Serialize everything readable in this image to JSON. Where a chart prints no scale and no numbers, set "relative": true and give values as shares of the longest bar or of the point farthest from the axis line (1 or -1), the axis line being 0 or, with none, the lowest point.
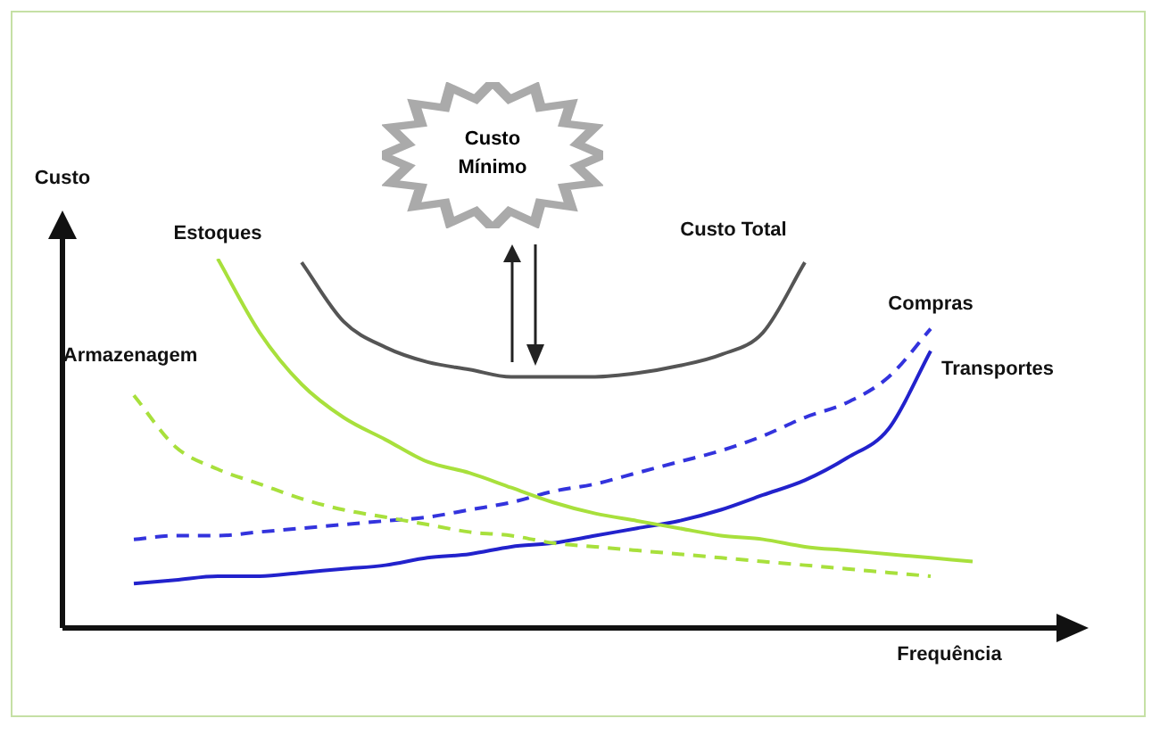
{
  "chart_data": {
    "type": "line",
    "relative": true,
    "xlabel": "Frequência",
    "ylabel": "Custo",
    "annotations": [
      "Custo Mínimo"
    ],
    "grid": false,
    "legend": false,
    "marker": "none",
    "categories": [
      null,
      null,
      null,
      null,
      null,
      null,
      null,
      null,
      null,
      null,
      null,
      null,
      null,
      null,
      null,
      null,
      null,
      null,
      null,
      null,
      null
    ],
    "series": [
      {
        "name": "Estoques",
        "color": "#a8e03c",
        "line_style": "solid",
        "values": [
          null,
          null,
          1.0,
          0.8,
          0.66,
          0.57,
          0.51,
          0.45,
          0.42,
          0.38,
          0.34,
          0.31,
          0.29,
          0.27,
          0.25,
          0.24,
          0.22,
          0.21,
          0.2,
          0.19,
          0.18
        ]
      },
      {
        "name": "Armazenagem",
        "color": "#a8e03c",
        "line_style": "dashed",
        "values": [
          0.63,
          0.49,
          0.43,
          0.39,
          0.35,
          0.32,
          0.3,
          0.28,
          0.26,
          0.25,
          0.23,
          0.22,
          0.21,
          0.2,
          0.19,
          0.18,
          0.17,
          0.16,
          0.15,
          0.14,
          null
        ]
      },
      {
        "name": "Custo Total",
        "color": "#555555",
        "line_style": "solid",
        "values": [
          null,
          null,
          null,
          null,
          0.99,
          0.83,
          0.76,
          0.72,
          0.7,
          0.68,
          0.68,
          0.68,
          0.69,
          0.71,
          0.74,
          0.8,
          0.99,
          null,
          null,
          null,
          null
        ]
      },
      {
        "name": "Compras",
        "color": "#3333dd",
        "line_style": "dashed",
        "values": [
          0.24,
          0.25,
          0.25,
          0.26,
          0.27,
          0.28,
          0.29,
          0.3,
          0.32,
          0.34,
          0.37,
          0.39,
          0.42,
          0.45,
          0.48,
          0.52,
          0.57,
          0.61,
          0.68,
          0.81,
          null
        ]
      },
      {
        "name": "Transportes",
        "color": "#2222cc",
        "line_style": "solid",
        "values": [
          0.12,
          0.13,
          0.14,
          0.14,
          0.15,
          0.16,
          0.17,
          0.19,
          0.2,
          0.22,
          0.23,
          0.25,
          0.27,
          0.29,
          0.32,
          0.36,
          0.4,
          0.46,
          0.54,
          0.75,
          null
        ]
      }
    ]
  }
}
